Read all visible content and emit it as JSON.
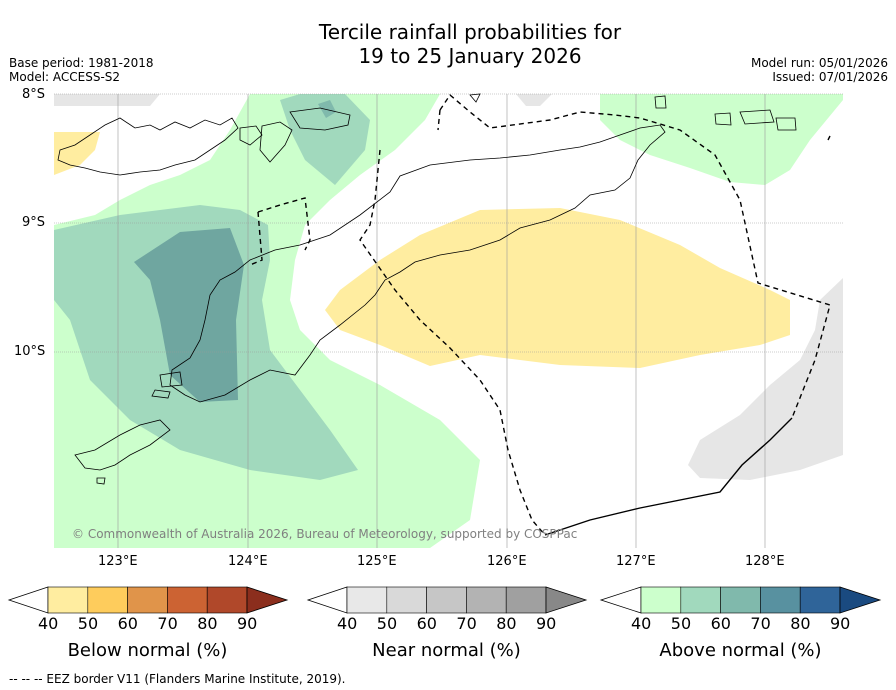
{
  "title": {
    "line1": "Tercile rainfall probabilities for",
    "line2": "19 to 25 January 2026"
  },
  "meta": {
    "base_period": "Base period: 1981-2018",
    "model": "Model: ACCESS-S2",
    "model_run": "Model run: 05/01/2026",
    "issued": "Issued: 07/01/2026"
  },
  "map": {
    "lat_labels": [
      "8°S",
      "9°S",
      "10°S"
    ],
    "lon_labels": [
      "123°E",
      "124°E",
      "125°E",
      "126°E",
      "127°E",
      "128°E"
    ],
    "copyright": "© Commonwealth of Australia 2026, Bureau of Meteorology, supported by COSPPac"
  },
  "colorbars": [
    {
      "title": "Below normal (%)",
      "ticks": [
        "40",
        "50",
        "60",
        "70",
        "80",
        "90"
      ],
      "colors": [
        "#ffeda0",
        "#fecc5c",
        "#e0944a",
        "#cc6333",
        "#b0482a",
        "#8b2e1d"
      ]
    },
    {
      "title": "Near normal (%)",
      "ticks": [
        "40",
        "50",
        "60",
        "70",
        "80",
        "90"
      ],
      "colors": [
        "#e8e8e8",
        "#d9d9d9",
        "#c6c6c6",
        "#b3b3b3",
        "#a0a0a0",
        "#888888"
      ]
    },
    {
      "title": "Above normal (%)",
      "ticks": [
        "40",
        "50",
        "60",
        "70",
        "80",
        "90"
      ],
      "colors": [
        "#ccffcc",
        "#a1d9bd",
        "#80b9ac",
        "#5891a0",
        "#2f6499",
        "#1a4a80"
      ]
    }
  ],
  "footnote": "--  --  -- EEZ border V11 (Flanders Marine Institute, 2019)."
}
